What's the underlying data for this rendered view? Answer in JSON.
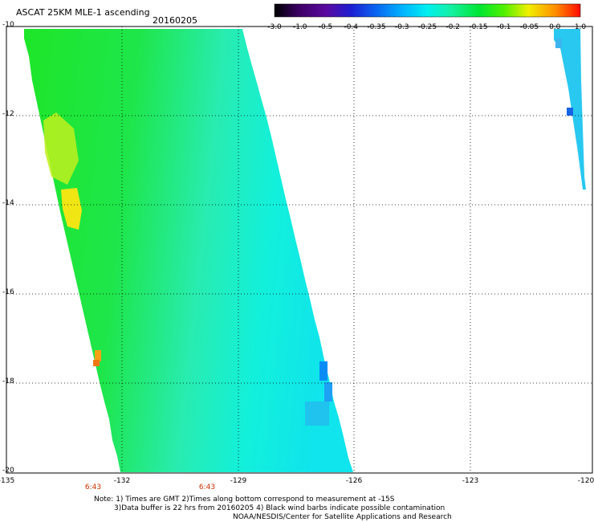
{
  "header": {
    "title": "ASCAT 25KM MLE-1 ascending",
    "date": "20160205"
  },
  "colorbar": {
    "labels": [
      "-3.0",
      "-1.0",
      "-0.5",
      "-0.4",
      "-0.35",
      "-0.3",
      "-0.25",
      "-0.2",
      "-0.15",
      "-0.1",
      "-0.05",
      "0.0",
      "1.0"
    ],
    "colors": [
      "#000000",
      "#5a0a8c",
      "#1428dc",
      "#0a6cf0",
      "#00b4ff",
      "#00e6f0",
      "#14f0b4",
      "#0ae650",
      "#00e614",
      "#96f000",
      "#ffd200",
      "#ff8c00",
      "#ff1e00"
    ]
  },
  "axes": {
    "y_labels": [
      "-10",
      "-12",
      "-14",
      "-16",
      "-18",
      "-20"
    ],
    "x_labels": [
      "-135",
      "-132",
      "-129",
      "-126",
      "-123",
      "-120"
    ],
    "time_labels": [
      "6:43",
      "6:43"
    ]
  },
  "notes": {
    "line1": "Note: 1) Times are GMT 2)Times along bottom correspond to measurement at -15S",
    "line2": "3)Data buffer is 22 hrs from 20160205 4) Black wind barbs indicate possible contamination",
    "line3": "NOAA/NESDIS/Center for Satellite Applications and Research"
  }
}
